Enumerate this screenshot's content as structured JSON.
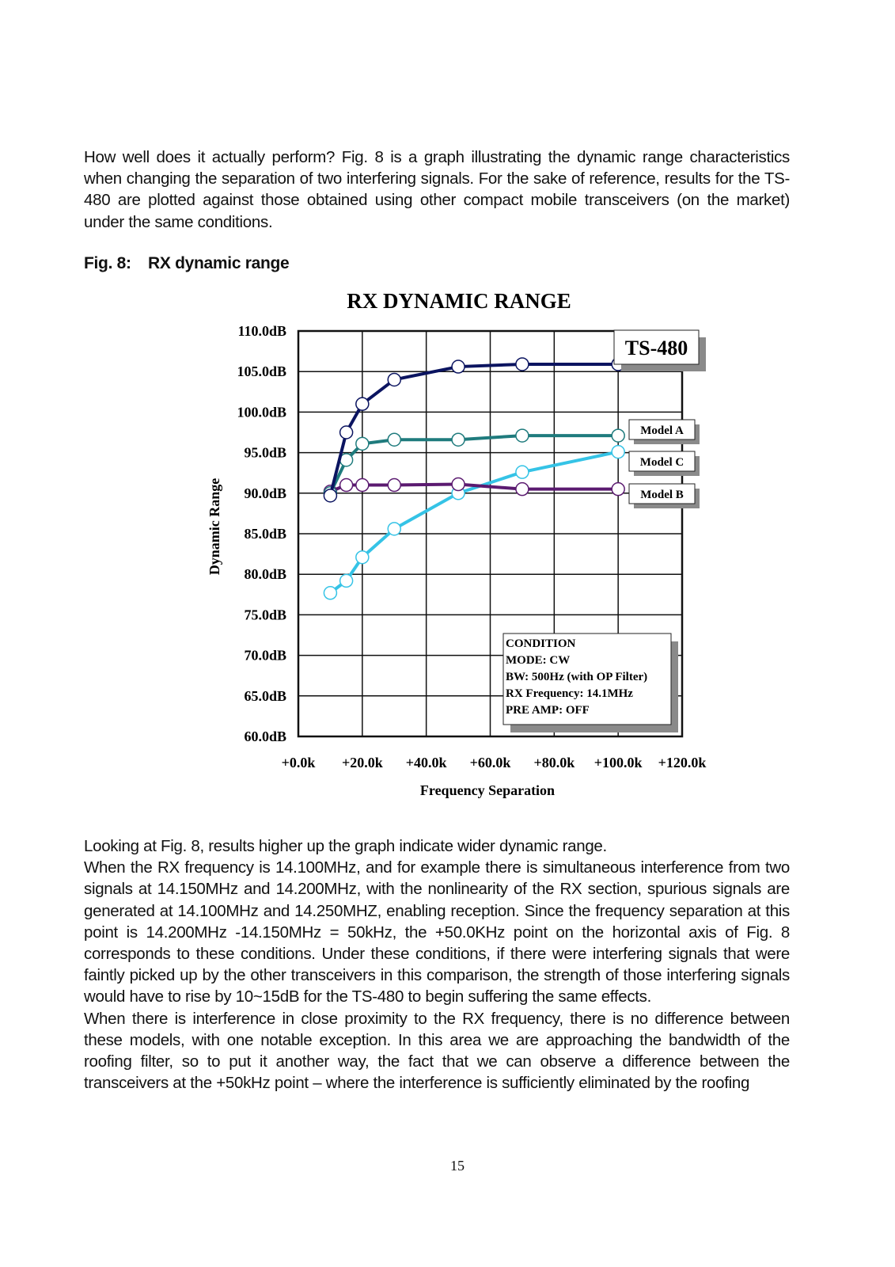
{
  "intro_paragraph": "How well does it actually perform? Fig. 8 is a graph illustrating the dynamic range characteristics when changing the separation of two interfering signals. For the sake of reference, results for the TS-480 are plotted against those obtained using other compact mobile transceivers (on the market) under the same conditions.",
  "figure": {
    "number": "Fig. 8:",
    "caption": "RX dynamic range"
  },
  "chart_data": {
    "type": "line",
    "title": "RX DYNAMIC RANGE",
    "xlabel": "Frequency Separation",
    "ylabel": "Dynamic Range",
    "xlim": [
      0,
      120
    ],
    "ylim": [
      60,
      110
    ],
    "grid": true,
    "x_tick_labels": [
      "+0.0k",
      "+20.0k",
      "+40.0k",
      "+60.0k",
      "+80.0k",
      "+100.0k",
      "+120.0k"
    ],
    "y_tick_labels": [
      "110.0dB",
      "105.0dB",
      "100.0dB",
      "95.0dB",
      "90.0dB",
      "85.0dB",
      "80.0dB",
      "75.0dB",
      "70.0dB",
      "65.0dB",
      "60.0dB"
    ],
    "x_unit": "kHz",
    "x": [
      10,
      15,
      20,
      30,
      50,
      70,
      100
    ],
    "series": [
      {
        "name": "TS-480",
        "color": "#0b1460",
        "values": [
          89.7,
          97.5,
          101.0,
          104.0,
          105.6,
          105.9,
          105.9
        ]
      },
      {
        "name": "Model A",
        "color": "#1f7b7d",
        "values": [
          90.0,
          94.1,
          96.1,
          96.6,
          96.6,
          97.1,
          97.1
        ]
      },
      {
        "name": "Model B",
        "color": "#5b1a70",
        "values": [
          90.2,
          91.0,
          91.0,
          91.0,
          91.1,
          90.5,
          90.5
        ]
      },
      {
        "name": "Model C",
        "color": "#35c3e6",
        "values": [
          77.7,
          79.2,
          82.1,
          85.6,
          90.0,
          92.6,
          95.1
        ]
      }
    ],
    "legend": "right, labels beside line ends",
    "condition_box": [
      "CONDITION",
      "MODE: CW",
      "BW: 500Hz (with OP Filter)",
      "RX Frequency: 14.1MHz",
      "PRE AMP: OFF"
    ]
  },
  "body_paragraphs": [
    "Looking at Fig. 8, results higher up the graph indicate wider dynamic range.",
    "When the RX frequency is 14.100MHz, and for example there is simultaneous interference from two signals at 14.150MHz and 14.200MHz, with the nonlinearity of the RX section, spurious signals are generated at 14.100MHz and 14.250MHZ, enabling reception. Since the frequency separation at this point is 14.200MHz -14.150MHz = 50kHz, the +50.0KHz point on the horizontal axis of Fig. 8 corresponds to these conditions. Under these conditions, if there were interfering signals that were faintly picked up by the other transceivers in this comparison, the strength of those interfering signals would have to rise by 10~15dB for the TS-480 to begin suffering the same effects.",
    "When there is interference in close proximity to the RX frequency, there is no difference between these models, with one notable exception. In this area we are approaching the bandwidth of the roofing filter, so to put it another way, the fact that we can observe a difference between the transceivers at the +50kHz point – where the interference is sufficiently eliminated by the roofing"
  ],
  "page_number": "15"
}
